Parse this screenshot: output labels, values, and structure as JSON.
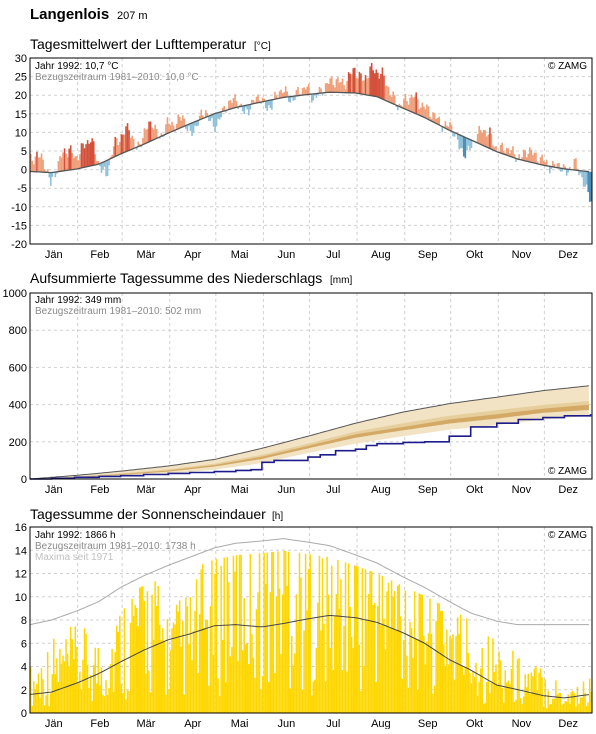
{
  "header": {
    "station": "Langenlois",
    "altitude": "207 m"
  },
  "months": [
    "Jän",
    "Feb",
    "Mär",
    "Apr",
    "Mai",
    "Jun",
    "Jul",
    "Aug",
    "Sep",
    "Okt",
    "Nov",
    "Dez"
  ],
  "colors": {
    "warm": "#ef9f7a",
    "hot": "#d4503a",
    "cool": "#8ec1d9",
    "cold": "#4a8cb8",
    "clim_line": "#555555",
    "precip_band_outer": "#f2e3c4",
    "precip_band_mid": "#e6cf9c",
    "precip_band_inner": "#d3a965",
    "precip_line": "#1c1c8c",
    "sun_bar": "#ffd700",
    "sun_mean_line": "#444444",
    "sun_max_line": "#aaaaaa",
    "grid": "#d0d0d0"
  },
  "panels": {
    "temperature": {
      "title": "Tagesmittelwert der Lufttemperatur",
      "unit": "[°C]",
      "legend_year": "Jahr 1992: 10,7 °C",
      "legend_ref": "Bezugszeitraum 1981–2010: 10,0 °C",
      "copyright": "© ZAMG",
      "yticks": [
        "30",
        "25",
        "20",
        "15",
        "10",
        "5",
        "0",
        "-5",
        "-10",
        "-15",
        "-20"
      ]
    },
    "precipitation": {
      "title": "Aufsummierte Tagessumme des Niederschlags",
      "unit": "[mm]",
      "legend_year": "Jahr 1992: 349 mm",
      "legend_ref": "Bezugszeitraum 1981–2010: 502 mm",
      "copyright": "© ZAMG",
      "yticks": [
        "1000",
        "800",
        "600",
        "400",
        "200",
        "0"
      ]
    },
    "sunshine": {
      "title": "Tagessumme der Sonnenscheindauer",
      "unit": "[h]",
      "legend_year": "Jahr 1992: 1866 h",
      "legend_ref": "Bezugszeitraum 1981–2010: 1738 h",
      "legend_max": "Maxima seit 1971",
      "copyright": "© ZAMG",
      "yticks": [
        "16",
        "14",
        "12",
        "10",
        "8",
        "6",
        "4",
        "2",
        "0"
      ]
    }
  },
  "chart_data": [
    {
      "type": "bar",
      "title": "Tagesmittelwert der Lufttemperatur",
      "ylabel": "°C",
      "ylim": [
        -20,
        30
      ],
      "x_unit": "day of year 1992",
      "grid": true,
      "climatology": {
        "name": "Bezugszeitraum 1981–2010",
        "x": [
          1,
          15,
          32,
          46,
          60,
          75,
          91,
          105,
          121,
          135,
          152,
          166,
          182,
          196,
          213,
          227,
          244,
          258,
          274,
          288,
          305,
          319,
          335,
          349,
          366
        ],
        "y": [
          -0.5,
          -0.8,
          0.2,
          1.5,
          4.2,
          6.8,
          9.8,
          12.3,
          15.0,
          16.7,
          18.2,
          19.4,
          20.2,
          20.8,
          20.6,
          19.6,
          16.5,
          14.0,
          10.6,
          8.0,
          4.8,
          2.8,
          1.2,
          0.2,
          -0.6
        ]
      },
      "anomaly_points": {
        "name": "Jahr 1992",
        "x": [
          1,
          5,
          10,
          14,
          18,
          22,
          26,
          30,
          35,
          40,
          45,
          50,
          55,
          60,
          65,
          70,
          75,
          80,
          85,
          90,
          95,
          100,
          105,
          110,
          115,
          120,
          125,
          130,
          135,
          140,
          145,
          150,
          155,
          160,
          165,
          170,
          175,
          180,
          185,
          190,
          195,
          200,
          205,
          210,
          212,
          215,
          218,
          222,
          226,
          230,
          235,
          240,
          245,
          250,
          255,
          260,
          265,
          270,
          275,
          280,
          285,
          290,
          295,
          300,
          305,
          310,
          315,
          320,
          325,
          330,
          335,
          340,
          345,
          350,
          355,
          360,
          363,
          366
        ],
        "y": [
          2.5,
          4.0,
          2.0,
          -4.0,
          0.5,
          4.5,
          5.5,
          3.0,
          6.0,
          8.5,
          2.0,
          -2.0,
          6.5,
          9.0,
          11.5,
          5.0,
          10.0,
          13.0,
          8.0,
          12.5,
          12.0,
          14.5,
          9.0,
          13.0,
          16.0,
          11.0,
          14.5,
          18.0,
          19.0,
          15.0,
          17.5,
          20.0,
          16.0,
          19.0,
          22.0,
          18.5,
          20.5,
          22.5,
          19.0,
          21.0,
          23.5,
          24.0,
          23.0,
          26.0,
          27.0,
          25.0,
          24.0,
          27.0,
          26.5,
          25.5,
          21.0,
          17.0,
          18.5,
          20.0,
          17.5,
          16.0,
          14.0,
          11.5,
          12.0,
          6.0,
          4.0,
          8.0,
          11.0,
          9.5,
          5.0,
          6.0,
          4.5,
          3.0,
          5.5,
          3.5,
          2.5,
          0.5,
          1.5,
          -1.0,
          2.0,
          -2.0,
          -6.0,
          -8.0
        ]
      }
    },
    {
      "type": "area",
      "title": "Aufsummierte Tagessumme des Niederschlags",
      "ylabel": "mm",
      "ylim": [
        0,
        1000
      ],
      "x_unit": "day of year 1992",
      "grid": true,
      "series": [
        {
          "name": "Jahr 1992",
          "x": [
            1,
            15,
            30,
            46,
            60,
            75,
            91,
            105,
            121,
            135,
            145,
            152,
            160,
            182,
            190,
            200,
            213,
            220,
            227,
            244,
            258,
            274,
            288,
            305,
            319,
            335,
            349,
            366
          ],
          "y": [
            0,
            4,
            9,
            14,
            18,
            24,
            30,
            35,
            40,
            46,
            50,
            90,
            100,
            118,
            130,
            152,
            160,
            180,
            190,
            197,
            200,
            230,
            280,
            300,
            320,
            330,
            340,
            349
          ]
        },
        {
          "name": "Bezugszeitraum 1981–2010",
          "x": [
            1,
            32,
            60,
            91,
            121,
            152,
            182,
            213,
            244,
            274,
            305,
            335,
            366
          ],
          "y": [
            0,
            20,
            42,
            70,
            105,
            165,
            230,
            300,
            360,
            405,
            440,
            475,
            502
          ]
        }
      ],
      "bands": {
        "x": [
          1,
          32,
          60,
          91,
          121,
          152,
          182,
          213,
          244,
          274,
          305,
          335,
          366
        ],
        "outer_low": [
          0,
          5,
          14,
          28,
          50,
          85,
          140,
          190,
          230,
          265,
          290,
          320,
          340
        ],
        "mid_low": [
          0,
          9,
          22,
          40,
          67,
          108,
          165,
          222,
          262,
          298,
          325,
          356,
          372
        ],
        "mid_high": [
          0,
          14,
          30,
          52,
          82,
          130,
          190,
          255,
          300,
          340,
          370,
          398,
          420
        ],
        "inner_high": [
          0,
          11,
          26,
          46,
          75,
          120,
          178,
          240,
          280,
          320,
          348,
          378,
          400
        ]
      }
    },
    {
      "type": "bar",
      "title": "Tagessumme der Sonnenscheindauer",
      "ylabel": "h",
      "ylim": [
        0,
        16
      ],
      "x_unit": "day of year 1992",
      "grid": true,
      "series": [
        {
          "name": "Bezugszeitraum 1981–2010",
          "x": [
            1,
            15,
            32,
            46,
            60,
            75,
            91,
            105,
            121,
            135,
            152,
            166,
            182,
            196,
            213,
            227,
            244,
            258,
            274,
            288,
            305,
            319,
            335,
            349,
            366
          ],
          "y": [
            1.6,
            1.8,
            2.6,
            3.4,
            4.4,
            5.4,
            6.3,
            6.8,
            7.5,
            7.6,
            7.4,
            7.7,
            8.1,
            8.4,
            8.2,
            7.8,
            6.9,
            6.0,
            4.6,
            3.7,
            2.4,
            2.0,
            1.5,
            1.3,
            1.6
          ]
        },
        {
          "name": "Maxima seit 1971",
          "x": [
            1,
            15,
            32,
            46,
            60,
            75,
            91,
            105,
            121,
            135,
            152,
            166,
            182,
            196,
            213,
            227,
            244,
            258,
            274,
            288,
            305,
            319,
            335,
            349,
            366
          ],
          "y": [
            7.6,
            8.0,
            8.8,
            9.6,
            10.8,
            11.8,
            12.7,
            13.4,
            14.2,
            14.6,
            14.8,
            15.0,
            14.7,
            14.4,
            13.6,
            12.9,
            11.7,
            10.8,
            9.6,
            8.6,
            7.9,
            7.6,
            7.6,
            7.6,
            7.6
          ]
        },
        {
          "name": "Jahr 1992",
          "x": [
            1,
            15,
            32,
            46,
            60,
            75,
            91,
            105,
            121,
            135,
            152,
            166,
            182,
            196,
            213,
            227,
            244,
            258,
            274,
            288,
            305,
            319,
            335,
            349,
            366
          ],
          "y": [
            2.5,
            4.0,
            4.5,
            4.0,
            6.0,
            9.0,
            5.5,
            6.5,
            9.0,
            12.0,
            11.5,
            12.0,
            10.0,
            9.0,
            12.0,
            10.0,
            9.0,
            9.5,
            7.0,
            5.0,
            4.0,
            3.0,
            2.5,
            1.5,
            2.0
          ]
        }
      ]
    }
  ]
}
